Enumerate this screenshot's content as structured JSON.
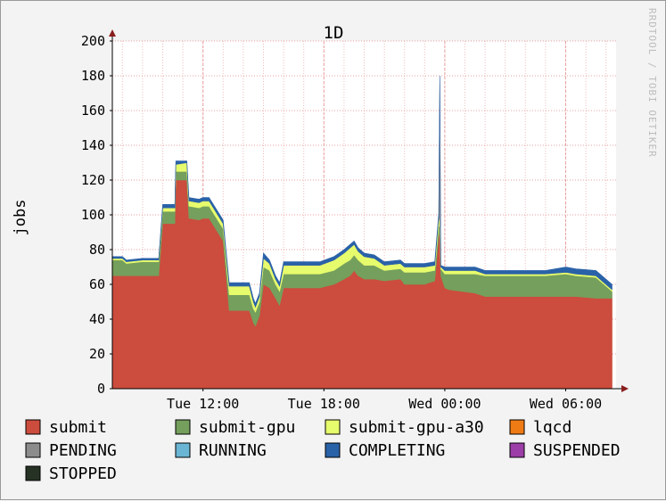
{
  "chart_data": {
    "type": "area",
    "title": "1D",
    "ylabel": "jobs",
    "xlabel": "",
    "ylim": [
      0,
      200
    ],
    "yticks": [
      0,
      20,
      40,
      60,
      80,
      100,
      120,
      140,
      160,
      180,
      200
    ],
    "x_range_hours": [
      7.5,
      32.5
    ],
    "xticks": [
      {
        "label": "Tue 12:00",
        "x": 12
      },
      {
        "label": "Tue 18:00",
        "x": 18
      },
      {
        "label": "Wed 00:00",
        "x": 24
      },
      {
        "label": "Wed 06:00",
        "x": 30
      }
    ],
    "x": [
      7.5,
      8.0,
      8.2,
      9.0,
      9.2,
      9.8,
      10.0,
      10.6,
      10.65,
      11.2,
      11.3,
      11.8,
      12.0,
      12.3,
      13.0,
      13.3,
      14.3,
      14.5,
      14.6,
      14.8,
      15.0,
      15.3,
      15.6,
      15.8,
      16.0,
      16.7,
      17.2,
      17.8,
      18.5,
      19.0,
      19.3,
      19.5,
      19.7,
      20.0,
      20.5,
      21.0,
      21.8,
      22.0,
      23.0,
      23.5,
      23.7,
      23.75,
      23.8,
      24.0,
      24.2,
      25.5,
      26.0,
      27.0,
      28.0,
      29.0,
      30.0,
      30.5,
      31.5,
      32.3
    ],
    "series": [
      {
        "name": "submit",
        "color": "#cc4c3d",
        "values": [
          65,
          65,
          65,
          65,
          65,
          65,
          95,
          95,
          120,
          120,
          98,
          97,
          98,
          98,
          85,
          45,
          45,
          38,
          36,
          42,
          60,
          58,
          52,
          48,
          58,
          58,
          58,
          58,
          60,
          63,
          65,
          68,
          65,
          63,
          63,
          62,
          63,
          60,
          60,
          62,
          88,
          90,
          65,
          58,
          57,
          55,
          53,
          53,
          53,
          53,
          53,
          53,
          52,
          52
        ]
      },
      {
        "name": "submit-gpu",
        "color": "#759f5c",
        "values": [
          9,
          9,
          7,
          8,
          8,
          8,
          7,
          7,
          5,
          5,
          7,
          7,
          7,
          7,
          7,
          9,
          9,
          8,
          8,
          8,
          10,
          10,
          8,
          8,
          8,
          8,
          8,
          8,
          8,
          9,
          9,
          9,
          9,
          8,
          8,
          6,
          6,
          7,
          7,
          6,
          6,
          3,
          4,
          8,
          9,
          11,
          12,
          12,
          12,
          12,
          13,
          12,
          12,
          4
        ]
      },
      {
        "name": "submit-gpu-a30",
        "color": "#e7fc6c",
        "values": [
          1,
          1,
          1,
          1,
          1,
          1,
          2,
          2,
          4,
          5,
          3,
          3,
          3,
          3,
          3,
          5,
          5,
          4,
          3,
          3,
          5,
          4,
          3,
          3,
          5,
          5,
          5,
          5,
          6,
          6,
          7,
          6,
          5,
          5,
          4,
          3,
          3,
          3,
          3,
          3,
          5,
          3,
          1,
          2,
          2,
          2,
          1,
          1,
          1,
          1,
          1,
          1,
          1,
          1
        ]
      },
      {
        "name": "lqcd",
        "color": "#ef7b15",
        "values": [
          0,
          0,
          0,
          0,
          0,
          0,
          0,
          0,
          0,
          0,
          0,
          0,
          0,
          0,
          0,
          0,
          0,
          0,
          0,
          0,
          0,
          0,
          0,
          0,
          0,
          0,
          0,
          0,
          0,
          0,
          0,
          0,
          0,
          0,
          0,
          0,
          0,
          0,
          0,
          0,
          0,
          0,
          0,
          0,
          0,
          0,
          0,
          0,
          0,
          0,
          0,
          0,
          0,
          0
        ]
      },
      {
        "name": "PENDING",
        "color": "#8c8c8c",
        "values": [
          0,
          0,
          0,
          0,
          0,
          0,
          0,
          0,
          0,
          0,
          0,
          0,
          0,
          0,
          0,
          0,
          0,
          0,
          0,
          0,
          0,
          0,
          0,
          0,
          0,
          0,
          0,
          0,
          0,
          0,
          0,
          0,
          0,
          0,
          0,
          0,
          0,
          0,
          0,
          0,
          0,
          83,
          0,
          0,
          0,
          0,
          0,
          0,
          0,
          0,
          0,
          0,
          0,
          0
        ]
      },
      {
        "name": "RUNNING",
        "color": "#6ab5d3",
        "values": [
          0,
          0,
          0,
          0,
          0,
          0,
          0,
          0,
          0,
          0,
          0,
          0,
          0,
          0,
          0,
          0,
          0,
          0,
          0,
          0,
          0,
          0,
          0,
          0,
          0,
          0,
          0,
          0,
          0,
          0,
          0,
          0,
          0,
          0,
          0,
          0,
          0,
          0,
          0,
          0,
          0,
          0,
          0,
          0,
          0,
          0,
          0,
          0,
          0,
          0,
          0,
          0,
          0,
          0
        ]
      },
      {
        "name": "COMPLETING",
        "color": "#2a62a8",
        "values": [
          1,
          1,
          1,
          1,
          1,
          1,
          2,
          2,
          2,
          1,
          2,
          2,
          2,
          2,
          2,
          2,
          2,
          2,
          2,
          2,
          3,
          2,
          2,
          2,
          2,
          2,
          2,
          2,
          2,
          2,
          2,
          2,
          2,
          2,
          2,
          2,
          2,
          2,
          2,
          2,
          2,
          1,
          1,
          2,
          2,
          2,
          2,
          2,
          2,
          2,
          3,
          3,
          3,
          3
        ]
      },
      {
        "name": "SUSPENDED",
        "color": "#9c3ea7",
        "values": [
          0,
          0,
          0,
          0,
          0,
          0,
          0,
          0,
          0,
          0,
          0,
          0,
          0,
          0,
          0,
          0,
          0,
          0,
          0,
          0,
          0,
          0,
          0,
          0,
          0,
          0,
          0,
          0,
          0,
          0,
          0,
          0,
          0,
          0,
          0,
          0,
          0,
          0,
          0,
          0,
          0,
          0,
          0,
          0,
          0,
          0,
          0,
          0,
          0,
          0,
          0,
          0,
          0,
          0
        ]
      },
      {
        "name": "STOPPED",
        "color": "#263223",
        "values": [
          0,
          0,
          0,
          0,
          0,
          0,
          0,
          0,
          0,
          0,
          0,
          0,
          0,
          0,
          0,
          0,
          0,
          0,
          0,
          0,
          0,
          0,
          0,
          0,
          0,
          0,
          0,
          0,
          0,
          0,
          0,
          0,
          0,
          0,
          0,
          0,
          0,
          0,
          0,
          0,
          0,
          0,
          0,
          0,
          0,
          0,
          0,
          0,
          0,
          0,
          0,
          0,
          0,
          0
        ]
      }
    ],
    "grid": true,
    "legend_position": "bottom",
    "watermark": "RRDTOOL / TOBI OETIKER",
    "colors": {
      "background": "#f3f3f3",
      "plot_background": "#ffffff",
      "grid": "#e9a0a0",
      "axis": "#000000",
      "arrow": "#8a1d1d"
    }
  }
}
